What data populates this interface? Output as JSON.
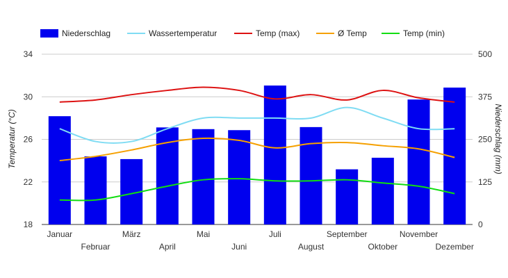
{
  "chart_data": {
    "type": "bar",
    "categories": [
      "Januar",
      "Februar",
      "März",
      "April",
      "Mai",
      "Juni",
      "Juli",
      "August",
      "September",
      "Oktober",
      "November",
      "Dezember"
    ],
    "bars": {
      "name": "Niederschlag",
      "color": "#0000ee",
      "values": [
        318,
        200,
        192,
        285,
        280,
        277,
        408,
        286,
        162,
        196,
        367,
        402
      ]
    },
    "lines": [
      {
        "name": "Wassertemperatur",
        "color": "#7fdcf3",
        "values": [
          27,
          25.8,
          25.8,
          27,
          28,
          28,
          28,
          28,
          29,
          28,
          27,
          27
        ]
      },
      {
        "name": "Temp (max)",
        "color": "#dd1111",
        "values": [
          29.5,
          29.7,
          30.2,
          30.6,
          30.9,
          30.6,
          29.8,
          30.2,
          29.7,
          30.6,
          29.9,
          29.5
        ]
      },
      {
        "name": "Ø Temp",
        "color": "#f5a000",
        "values": [
          24,
          24.4,
          25,
          25.7,
          26.1,
          25.9,
          25.2,
          25.6,
          25.7,
          25.4,
          25.1,
          24.3
        ]
      },
      {
        "name": "Temp (min)",
        "color": "#11dd11",
        "values": [
          20.3,
          20.3,
          20.9,
          21.6,
          22.2,
          22.3,
          22.1,
          22.1,
          22.2,
          21.9,
          21.6,
          20.9
        ]
      }
    ],
    "left_axis": {
      "title": "Temperatur (°C)",
      "min": 18,
      "max": 34,
      "ticks": [
        18,
        22,
        26,
        30,
        34
      ]
    },
    "right_axis": {
      "title": "Niederschlag (mm)",
      "min": 0,
      "max": 500,
      "ticks": [
        0,
        125,
        250,
        375,
        500
      ]
    },
    "grid": true,
    "legend_position": "top"
  }
}
